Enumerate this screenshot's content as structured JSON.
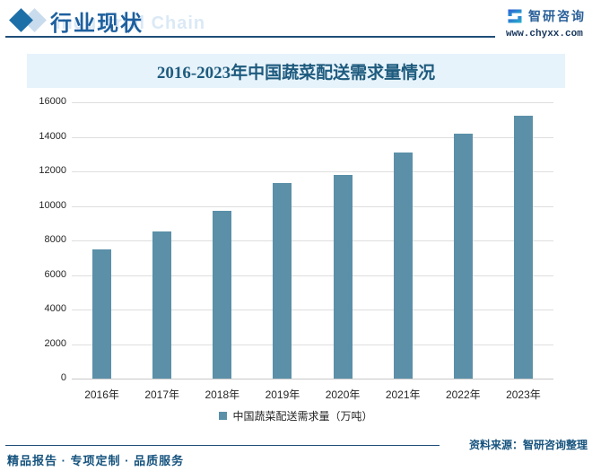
{
  "header": {
    "section_title": "行业现状",
    "section_title_ghost": "Industrial Chain",
    "brand_name": "智研咨询",
    "brand_url": "www.chyxx.com"
  },
  "chart_data": {
    "type": "bar",
    "title": "2016-2023年中国蔬菜配送需求量情况",
    "categories": [
      "2016年",
      "2017年",
      "2018年",
      "2019年",
      "2020年",
      "2021年",
      "2022年",
      "2023年"
    ],
    "values": [
      7500,
      8500,
      9700,
      11300,
      11800,
      13100,
      14200,
      15200
    ],
    "series_name": "中国蔬菜配送需求量（万吨）",
    "xlabel": "",
    "ylabel": "",
    "ylim": [
      0,
      16000
    ],
    "ytick_step": 2000,
    "grid": true,
    "legend_position": "bottom",
    "bar_color": "#5b90a8"
  },
  "legend": {
    "label": "中国蔬菜配送需求量（万吨）"
  },
  "footer": {
    "source": "资料来源：智研咨询整理",
    "slogan": "精品报告 · 专项定制 · 品质服务"
  },
  "colors": {
    "accent_blue": "#1d5f9e",
    "banner_bg": "#e7f3fb",
    "title_text": "#1e5b7e",
    "rule_blue": "#1f4e79",
    "gridline": "#dedede",
    "baseline": "#c9c9c9",
    "bar": "#5b90a8"
  }
}
